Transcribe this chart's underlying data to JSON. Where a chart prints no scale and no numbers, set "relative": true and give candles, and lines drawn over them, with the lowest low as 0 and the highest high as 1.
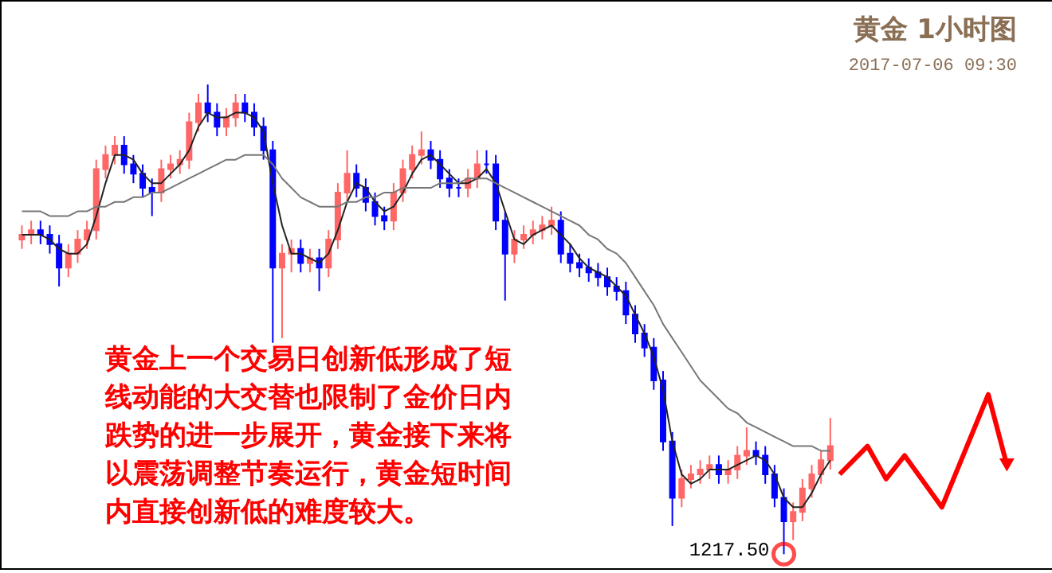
{
  "chart_data": {
    "type": "candlestick",
    "title": "黄金 1小时图",
    "subtitle": "2017-07-06 09:30",
    "relative": true,
    "grid": false,
    "tick_labels": false,
    "categories": [
      null,
      null,
      null,
      null,
      null,
      null,
      null,
      null,
      null,
      null,
      null,
      null,
      null,
      null,
      null,
      null,
      null,
      null,
      null,
      null,
      null,
      null,
      null,
      null,
      null,
      null,
      null,
      null,
      null,
      null,
      null,
      null,
      null,
      null,
      null,
      null,
      null,
      null,
      null,
      null,
      null,
      null,
      null,
      null,
      null,
      null,
      null,
      null,
      null,
      null,
      null,
      null,
      null,
      null,
      null,
      null,
      null,
      null,
      null,
      null,
      null,
      null,
      null,
      null,
      null,
      null,
      null,
      null,
      null,
      null,
      null,
      null,
      null,
      null,
      null,
      null,
      null,
      null,
      null,
      null,
      null,
      null,
      null,
      null,
      null,
      null,
      null,
      null,
      null,
      null,
      null,
      null,
      null,
      null,
      null,
      null,
      null,
      null,
      null,
      null,
      null,
      null,
      null,
      null,
      null,
      null,
      null
    ],
    "ohlc": [
      [
        0.67,
        0.7,
        0.65,
        0.68
      ],
      [
        0.68,
        0.71,
        0.66,
        0.69
      ],
      [
        0.69,
        0.71,
        0.66,
        0.68
      ],
      [
        0.68,
        0.7,
        0.64,
        0.66
      ],
      [
        0.66,
        0.68,
        0.57,
        0.61
      ],
      [
        0.61,
        0.66,
        0.59,
        0.64
      ],
      [
        0.64,
        0.69,
        0.62,
        0.67
      ],
      [
        0.67,
        0.71,
        0.65,
        0.69
      ],
      [
        0.69,
        0.84,
        0.67,
        0.82
      ],
      [
        0.82,
        0.87,
        0.8,
        0.85
      ],
      [
        0.85,
        0.89,
        0.83,
        0.87
      ],
      [
        0.87,
        0.89,
        0.81,
        0.83
      ],
      [
        0.83,
        0.85,
        0.79,
        0.81
      ],
      [
        0.81,
        0.83,
        0.76,
        0.78
      ],
      [
        0.78,
        0.8,
        0.72,
        0.77
      ],
      [
        0.77,
        0.84,
        0.75,
        0.82
      ],
      [
        0.82,
        0.85,
        0.8,
        0.83
      ],
      [
        0.83,
        0.86,
        0.81,
        0.84
      ],
      [
        0.84,
        0.94,
        0.82,
        0.92
      ],
      [
        0.92,
        0.98,
        0.9,
        0.96
      ],
      [
        0.96,
        1.0,
        0.92,
        0.94
      ],
      [
        0.94,
        0.96,
        0.89,
        0.91
      ],
      [
        0.91,
        0.95,
        0.89,
        0.93
      ],
      [
        0.93,
        0.98,
        0.91,
        0.96
      ],
      [
        0.96,
        0.98,
        0.92,
        0.94
      ],
      [
        0.94,
        0.96,
        0.89,
        0.91
      ],
      [
        0.91,
        0.93,
        0.84,
        0.86
      ],
      [
        0.86,
        0.88,
        0.45,
        0.61
      ],
      [
        0.61,
        0.66,
        0.46,
        0.64
      ],
      [
        0.64,
        0.67,
        0.6,
        0.65
      ],
      [
        0.65,
        0.67,
        0.6,
        0.62
      ],
      [
        0.62,
        0.65,
        0.6,
        0.63
      ],
      [
        0.63,
        0.65,
        0.56,
        0.61
      ],
      [
        0.61,
        0.69,
        0.59,
        0.67
      ],
      [
        0.67,
        0.79,
        0.65,
        0.77
      ],
      [
        0.77,
        0.86,
        0.75,
        0.81
      ],
      [
        0.81,
        0.83,
        0.76,
        0.78
      ],
      [
        0.78,
        0.8,
        0.73,
        0.75
      ],
      [
        0.75,
        0.77,
        0.7,
        0.72
      ],
      [
        0.72,
        0.74,
        0.69,
        0.71
      ],
      [
        0.71,
        0.79,
        0.69,
        0.77
      ],
      [
        0.77,
        0.84,
        0.75,
        0.82
      ],
      [
        0.82,
        0.87,
        0.8,
        0.85
      ],
      [
        0.85,
        0.9,
        0.83,
        0.86
      ],
      [
        0.86,
        0.88,
        0.82,
        0.84
      ],
      [
        0.84,
        0.86,
        0.78,
        0.8
      ],
      [
        0.8,
        0.82,
        0.76,
        0.78
      ],
      [
        0.78,
        0.8,
        0.76,
        0.78
      ],
      [
        0.78,
        0.82,
        0.76,
        0.8
      ],
      [
        0.8,
        0.86,
        0.78,
        0.83
      ],
      [
        0.83,
        0.86,
        0.81,
        0.83
      ],
      [
        0.83,
        0.85,
        0.69,
        0.71
      ],
      [
        0.71,
        0.73,
        0.54,
        0.64
      ],
      [
        0.64,
        0.69,
        0.62,
        0.67
      ],
      [
        0.67,
        0.7,
        0.65,
        0.68
      ],
      [
        0.68,
        0.71,
        0.66,
        0.69
      ],
      [
        0.69,
        0.72,
        0.67,
        0.7
      ],
      [
        0.7,
        0.74,
        0.68,
        0.71
      ],
      [
        0.71,
        0.73,
        0.62,
        0.64
      ],
      [
        0.64,
        0.66,
        0.6,
        0.62
      ],
      [
        0.62,
        0.64,
        0.59,
        0.61
      ],
      [
        0.61,
        0.63,
        0.58,
        0.6
      ],
      [
        0.6,
        0.62,
        0.57,
        0.59
      ],
      [
        0.59,
        0.61,
        0.55,
        0.57
      ],
      [
        0.57,
        0.59,
        0.54,
        0.56
      ],
      [
        0.56,
        0.58,
        0.49,
        0.51
      ],
      [
        0.51,
        0.53,
        0.45,
        0.47
      ],
      [
        0.47,
        0.49,
        0.42,
        0.44
      ],
      [
        0.44,
        0.46,
        0.35,
        0.37
      ],
      [
        0.37,
        0.39,
        0.22,
        0.24
      ],
      [
        0.24,
        0.26,
        0.06,
        0.12
      ],
      [
        0.12,
        0.18,
        0.1,
        0.16
      ],
      [
        0.16,
        0.19,
        0.14,
        0.17
      ],
      [
        0.17,
        0.2,
        0.15,
        0.18
      ],
      [
        0.18,
        0.21,
        0.16,
        0.19
      ],
      [
        0.19,
        0.21,
        0.15,
        0.17
      ],
      [
        0.17,
        0.2,
        0.15,
        0.18
      ],
      [
        0.18,
        0.23,
        0.16,
        0.21
      ],
      [
        0.21,
        0.27,
        0.19,
        0.22
      ],
      [
        0.22,
        0.24,
        0.19,
        0.21
      ],
      [
        0.21,
        0.23,
        0.15,
        0.17
      ],
      [
        0.17,
        0.19,
        0.1,
        0.12
      ],
      [
        0.12,
        0.14,
        0.0,
        0.07
      ],
      [
        0.07,
        0.11,
        0.03,
        0.09
      ],
      [
        0.09,
        0.16,
        0.07,
        0.14
      ],
      [
        0.14,
        0.19,
        0.12,
        0.17
      ],
      [
        0.17,
        0.22,
        0.15,
        0.2
      ],
      [
        0.2,
        0.29,
        0.18,
        0.23
      ],
      null,
      null,
      null,
      null,
      null,
      null,
      null,
      null,
      null,
      null,
      null,
      null,
      null,
      null,
      null,
      null,
      null,
      null,
      null
    ],
    "colors": [
      "#ff6666",
      "#ff6666",
      "#0000ff",
      "#0000ff",
      "#0000ff",
      "#ff6666",
      "#ff6666",
      "#ff6666",
      "#ff6666",
      "#ff6666",
      "#ff6666",
      "#0000ff",
      "#0000ff",
      "#0000ff",
      "#0000ff",
      "#ff6666",
      "#ff6666",
      "#ff6666",
      "#ff6666",
      "#ff6666",
      "#0000ff",
      "#0000ff",
      "#ff6666",
      "#ff6666",
      "#0000ff",
      "#0000ff",
      "#0000ff",
      "#0000ff",
      "#ff6666",
      "#ff6666",
      "#0000ff",
      "#ff6666",
      "#0000ff",
      "#ff6666",
      "#ff6666",
      "#ff6666",
      "#0000ff",
      "#0000ff",
      "#0000ff",
      "#0000ff",
      "#ff6666",
      "#ff6666",
      "#ff6666",
      "#ff6666",
      "#0000ff",
      "#0000ff",
      "#0000ff",
      "#0000ff",
      "#ff6666",
      "#ff6666",
      "#0000ff",
      "#0000ff",
      "#0000ff",
      "#ff6666",
      "#ff6666",
      "#ff6666",
      "#ff6666",
      "#ff6666",
      "#0000ff",
      "#0000ff",
      "#0000ff",
      "#0000ff",
      "#0000ff",
      "#0000ff",
      "#0000ff",
      "#0000ff",
      "#0000ff",
      "#0000ff",
      "#0000ff",
      "#0000ff",
      "#0000ff",
      "#ff6666",
      "#ff6666",
      "#ff6666",
      "#ff6666",
      "#0000ff",
      "#ff6666",
      "#ff6666",
      "#ff6666",
      "#0000ff",
      "#0000ff",
      "#0000ff",
      "#0000ff",
      "#ff6666",
      "#ff6666",
      "#ff6666",
      "#ff6666",
      "#ff6666",
      null,
      null,
      null,
      null,
      null,
      null,
      null,
      null,
      null,
      null,
      null,
      null,
      null,
      null,
      null,
      null,
      null,
      null,
      null
    ],
    "series": [
      {
        "type": "line",
        "color": "#222222",
        "values": [
          0.68,
          0.68,
          0.68,
          0.67,
          0.65,
          0.64,
          0.64,
          0.66,
          0.72,
          0.79,
          0.85,
          0.85,
          0.84,
          0.81,
          0.79,
          0.79,
          0.81,
          0.83,
          0.86,
          0.91,
          0.94,
          0.93,
          0.93,
          0.94,
          0.94,
          0.93,
          0.9,
          0.79,
          0.7,
          0.64,
          0.64,
          0.63,
          0.62,
          0.64,
          0.69,
          0.75,
          0.79,
          0.78,
          0.75,
          0.73,
          0.74,
          0.77,
          0.81,
          0.84,
          0.85,
          0.83,
          0.81,
          0.79,
          0.79,
          0.8,
          0.82,
          0.79,
          0.73,
          0.67,
          0.66,
          0.68,
          0.69,
          0.7,
          0.68,
          0.66,
          0.63,
          0.61,
          0.6,
          0.59,
          0.57,
          0.55,
          0.51,
          0.47,
          0.42,
          0.35,
          0.24,
          0.17,
          0.15,
          0.16,
          0.18,
          0.18,
          0.18,
          0.19,
          0.2,
          0.21,
          0.2,
          0.17,
          0.12,
          0.1,
          0.1,
          0.13,
          0.17,
          0.2,
          null,
          null,
          null,
          null,
          null,
          null,
          null,
          null,
          null,
          null,
          null,
          null,
          null,
          null,
          null,
          null,
          null,
          null,
          null
        ]
      },
      {
        "type": "line",
        "color": "#777777",
        "values": [
          0.73,
          0.73,
          0.73,
          0.72,
          0.72,
          0.72,
          0.73,
          0.73,
          0.74,
          0.74,
          0.75,
          0.75,
          0.76,
          0.76,
          0.77,
          0.77,
          0.78,
          0.79,
          0.8,
          0.81,
          0.82,
          0.83,
          0.84,
          0.84,
          0.85,
          0.85,
          0.85,
          0.83,
          0.8,
          0.78,
          0.76,
          0.75,
          0.74,
          0.74,
          0.74,
          0.75,
          0.75,
          0.76,
          0.76,
          0.77,
          0.77,
          0.78,
          0.78,
          0.78,
          0.78,
          0.79,
          0.79,
          0.79,
          0.8,
          0.8,
          0.8,
          0.79,
          0.78,
          0.77,
          0.76,
          0.75,
          0.74,
          0.73,
          0.72,
          0.71,
          0.7,
          0.68,
          0.67,
          0.65,
          0.64,
          0.62,
          0.59,
          0.56,
          0.53,
          0.49,
          0.46,
          0.43,
          0.4,
          0.37,
          0.35,
          0.33,
          0.31,
          0.3,
          0.28,
          0.27,
          0.26,
          0.25,
          0.24,
          0.23,
          0.23,
          0.23,
          0.22,
          0.22,
          null,
          null,
          null,
          null,
          null,
          null,
          null,
          null,
          null,
          null,
          null,
          null,
          null,
          null,
          null,
          null,
          null,
          null,
          null
        ]
      },
      {
        "type": "line",
        "color": "#ff0000",
        "values": [
          null,
          null,
          null,
          null,
          null,
          null,
          null,
          null,
          null,
          null,
          null,
          null,
          null,
          null,
          null,
          null,
          null,
          null,
          null,
          null,
          null,
          null,
          null,
          null,
          null,
          null,
          null,
          null,
          null,
          null,
          null,
          null,
          null,
          null,
          null,
          null,
          null,
          null,
          null,
          null,
          null,
          null,
          null,
          null,
          null,
          null,
          null,
          null,
          null,
          null,
          null,
          null,
          null,
          null,
          null,
          null,
          null,
          null,
          null,
          null,
          null,
          null,
          null,
          null,
          null,
          null,
          null,
          null,
          null,
          null,
          null,
          null,
          null,
          null,
          null,
          null,
          null,
          null,
          null,
          null,
          null,
          null,
          null,
          null,
          null,
          null,
          null,
          null,
          0.17,
          null,
          null,
          0.23,
          null,
          0.16,
          null,
          0.21,
          null,
          null,
          null,
          0.1,
          null,
          null,
          null,
          null,
          0.34,
          null,
          0.19
        ]
      }
    ],
    "annotations": [
      "黄金上一个交易日创新低形成了短线动能的大交替也限制了金价日内跌势的进一步展开，黄金接下来将以震荡调整节奏运行，黄金短时间内直接创新低的难度较大。",
      "1217.50"
    ]
  }
}
